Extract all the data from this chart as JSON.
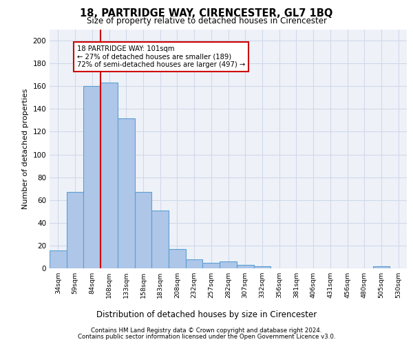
{
  "title": "18, PARTRIDGE WAY, CIRENCESTER, GL7 1BQ",
  "subtitle": "Size of property relative to detached houses in Cirencester",
  "xlabel": "Distribution of detached houses by size in Cirencester",
  "ylabel": "Number of detached properties",
  "bar_values": [
    16,
    67,
    160,
    163,
    132,
    67,
    51,
    17,
    8,
    5,
    6,
    3,
    2,
    0,
    0,
    0,
    0,
    0,
    0,
    2,
    0
  ],
  "x_labels": [
    "34sqm",
    "59sqm",
    "84sqm",
    "108sqm",
    "133sqm",
    "158sqm",
    "183sqm",
    "208sqm",
    "232sqm",
    "257sqm",
    "282sqm",
    "307sqm",
    "332sqm",
    "356sqm",
    "381sqm",
    "406sqm",
    "431sqm",
    "456sqm",
    "480sqm",
    "505sqm",
    "530sqm"
  ],
  "bar_color": "#aec6e8",
  "bar_edge_color": "#5a9fd4",
  "bar_edge_width": 0.8,
  "grid_color": "#d0d8e8",
  "background_color": "#eef2f8",
  "vline_x_index": 3,
  "vline_color": "#cc0000",
  "annotation_text": "18 PARTRIDGE WAY: 101sqm\n← 27% of detached houses are smaller (189)\n72% of semi-detached houses are larger (497) →",
  "annotation_box_color": "#ffffff",
  "annotation_box_edge": "#cc0000",
  "ylim": [
    0,
    210
  ],
  "yticks": [
    0,
    20,
    40,
    60,
    80,
    100,
    120,
    140,
    160,
    180,
    200
  ],
  "footer_line1": "Contains HM Land Registry data © Crown copyright and database right 2024.",
  "footer_line2": "Contains public sector information licensed under the Open Government Licence v3.0."
}
